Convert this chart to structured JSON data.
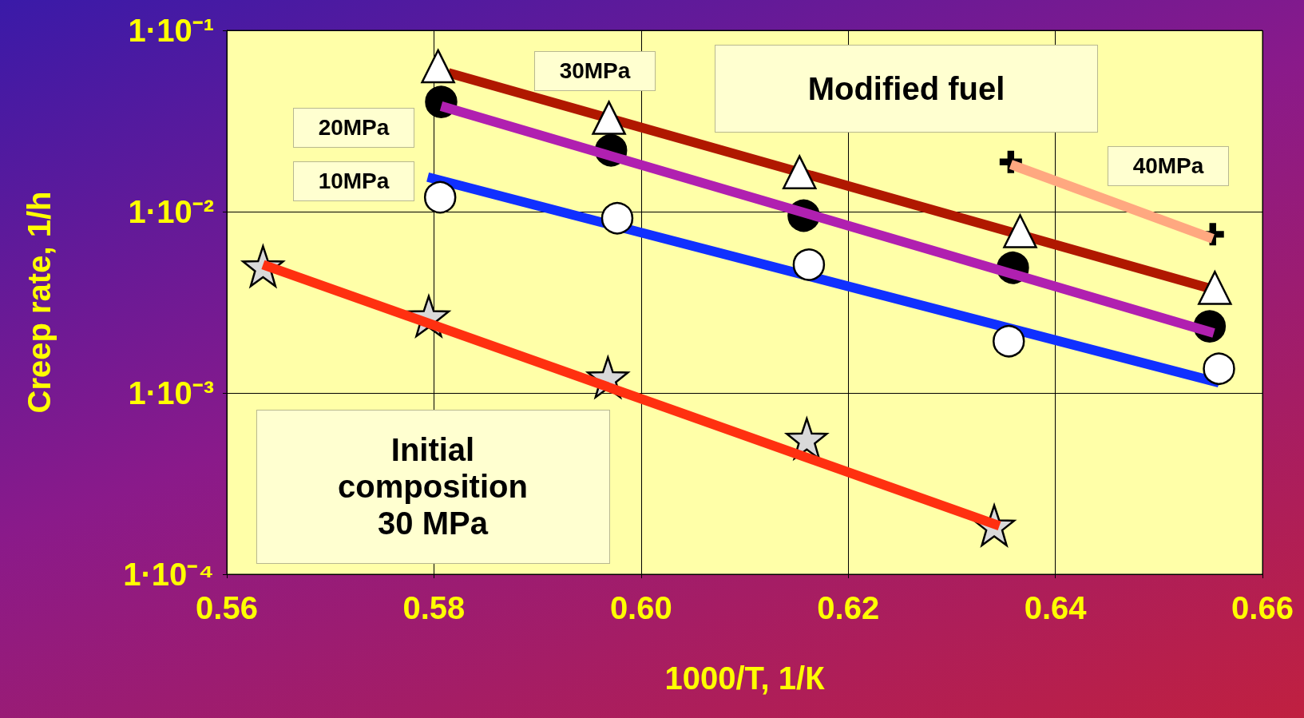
{
  "chart_data": {
    "type": "scatter",
    "xlabel": "1000/T, 1/К",
    "ylabel": "Creep rate, 1/h",
    "log": "y",
    "grid": true,
    "xlim": [
      0.56,
      0.66
    ],
    "xticks": [
      {
        "value": 0.56,
        "label": "0.56"
      },
      {
        "value": 0.58,
        "label": "0.58"
      },
      {
        "value": 0.6,
        "label": "0.60"
      },
      {
        "value": 0.62,
        "label": "0.62"
      },
      {
        "value": 0.64,
        "label": "0.64"
      },
      {
        "value": 0.66,
        "label": "0.66"
      }
    ],
    "ylim": [
      0.0001,
      0.1
    ],
    "yticks": [
      {
        "value": 0.0001,
        "label": "1·10⁻⁴"
      },
      {
        "value": 0.001,
        "label": "1·10⁻³"
      },
      {
        "value": 0.01,
        "label": "1·10⁻²"
      },
      {
        "value": 0.1,
        "label": "1·10⁻¹"
      }
    ],
    "annotations": [
      "10MPa",
      "20MPa",
      "30MPa",
      "40MPa",
      "Modified fuel",
      "Initial\ncomposition\n30 MPa"
    ],
    "series": [
      {
        "type": "line",
        "marker": "none",
        "color": "#ff3010",
        "x": [
          0.5635,
          0.6346
        ],
        "values": [
          0.0051,
          0.000185
        ]
      },
      {
        "type": "line",
        "marker": "none",
        "color": "#1030ff",
        "x": [
          0.5794,
          0.6558
        ],
        "values": [
          0.0155,
          0.00114
        ]
      },
      {
        "type": "line",
        "marker": "none",
        "color": "#b020b0",
        "x": [
          0.5807,
          0.6553
        ],
        "values": [
          0.0382,
          0.00214
        ]
      },
      {
        "type": "line",
        "marker": "none",
        "color": "#b01800",
        "x": [
          0.5814,
          0.6553
        ],
        "values": [
          0.0583,
          0.00372
        ]
      },
      {
        "type": "line",
        "marker": "none",
        "color": "#ffa880",
        "x": [
          0.6357,
          0.6552
        ],
        "values": [
          0.0182,
          0.0071
        ]
      },
      {
        "type": "scatter",
        "marker": "star",
        "color": "#d9d9d9",
        "x": [
          0.5635,
          0.5795,
          0.5968,
          0.616,
          0.6341
        ],
        "values": [
          0.005,
          0.00265,
          0.00122,
          0.00056,
          0.000186
        ]
      },
      {
        "type": "scatter",
        "marker": "circle",
        "color": "#ffffff",
        "x": [
          0.5806,
          0.5977,
          0.6162,
          0.6355,
          0.6558
        ],
        "values": [
          0.012,
          0.0092,
          0.0051,
          0.00193,
          0.00136
        ]
      },
      {
        "type": "scatter",
        "marker": "circle",
        "color": "#000000",
        "x": [
          0.5807,
          0.5971,
          0.6157,
          0.6359,
          0.6549
        ],
        "values": [
          0.0403,
          0.0218,
          0.0095,
          0.0049,
          0.00233
        ]
      },
      {
        "type": "scatter",
        "marker": "triangle",
        "color": "#ffffff",
        "x": [
          0.5804,
          0.5969,
          0.6153,
          0.6366,
          0.6554
        ],
        "values": [
          0.0634,
          0.0329,
          0.0165,
          0.0078,
          0.0038
        ]
      },
      {
        "type": "scatter",
        "marker": "cross",
        "color": "#000000",
        "x": [
          0.6357,
          0.6552
        ],
        "values": [
          0.0188,
          0.0075
        ]
      }
    ]
  }
}
